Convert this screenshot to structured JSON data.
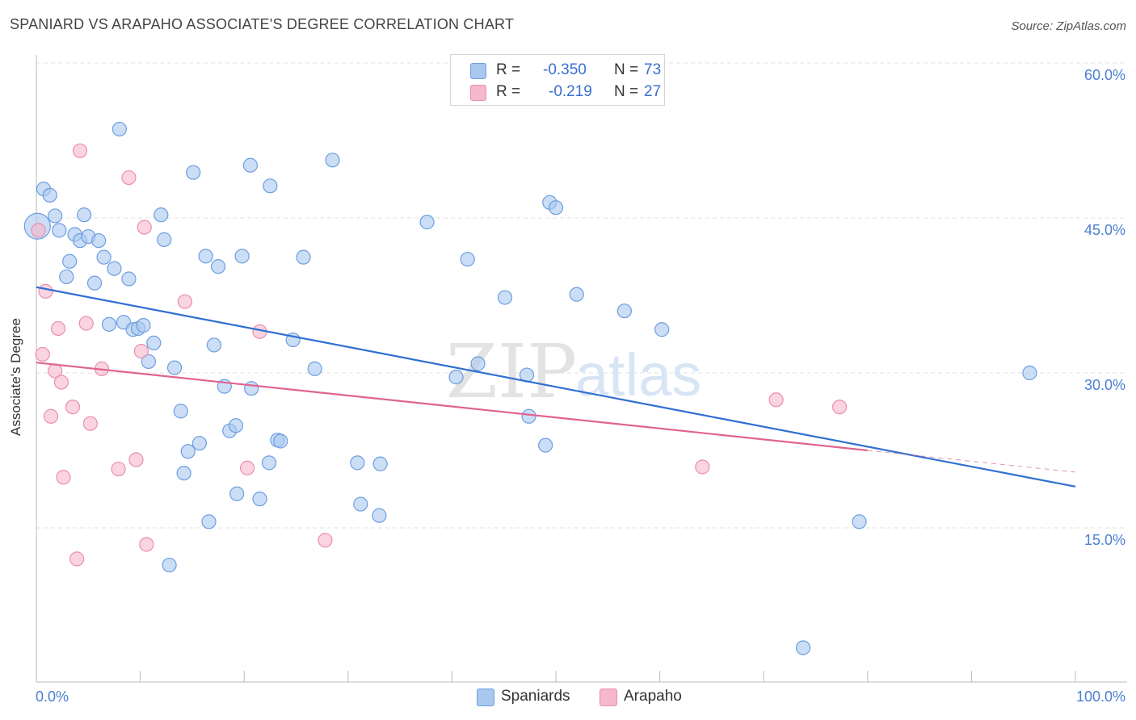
{
  "title": "SPANIARD VS ARAPAHO ASSOCIATE'S DEGREE CORRELATION CHART",
  "source": "Source: ZipAtlas.com",
  "watermark": {
    "zip": "ZIP",
    "atlas": "atlas"
  },
  "legend": {
    "rows": [
      {
        "r_label": "R =",
        "r_value": "-0.350",
        "n_label": "N =",
        "n_value": "73",
        "color": "#a9c8f0"
      },
      {
        "r_label": "R =",
        "r_value": "-0.219",
        "n_label": "N =",
        "n_value": "27",
        "color": "#f6b8cb"
      }
    ]
  },
  "bottom_legend": [
    {
      "label": "Spaniards",
      "color": "#a9c8f0"
    },
    {
      "label": "Arapaho",
      "color": "#f6b8cb"
    }
  ],
  "chart_data": {
    "type": "scatter",
    "title": "SPANIARD VS ARAPAHO ASSOCIATE'S DEGREE CORRELATION CHART",
    "xlabel": "",
    "ylabel": "Associate's Degree",
    "xlim": [
      0,
      100
    ],
    "ylim": [
      0,
      63
    ],
    "x_tick_labels": [
      "0.0%",
      "100.0%"
    ],
    "y_ticks": [
      15,
      30,
      45,
      60
    ],
    "y_tick_labels": [
      "15.0%",
      "30.0%",
      "45.0%",
      "60.0%"
    ],
    "grid": true,
    "series": [
      {
        "name": "Spaniards",
        "color": "#a9c8f0",
        "stroke": "#6d9ee0",
        "line_color": "#2f6fd0",
        "trend": {
          "x0": 0,
          "y0": 38.3,
          "x1": 100,
          "y1": 19.0
        },
        "points": [
          {
            "x": 0.1,
            "y": 44.2,
            "big": true
          },
          {
            "x": 0.7,
            "y": 47.8
          },
          {
            "x": 1.3,
            "y": 47.2
          },
          {
            "x": 1.8,
            "y": 45.2
          },
          {
            "x": 2.2,
            "y": 43.8
          },
          {
            "x": 2.9,
            "y": 39.3
          },
          {
            "x": 3.2,
            "y": 40.8
          },
          {
            "x": 3.7,
            "y": 43.4
          },
          {
            "x": 4.2,
            "y": 42.8
          },
          {
            "x": 4.6,
            "y": 45.3
          },
          {
            "x": 5.0,
            "y": 43.2
          },
          {
            "x": 5.6,
            "y": 38.7
          },
          {
            "x": 6.0,
            "y": 42.8
          },
          {
            "x": 6.5,
            "y": 41.2
          },
          {
            "x": 7.0,
            "y": 34.7
          },
          {
            "x": 7.5,
            "y": 40.1
          },
          {
            "x": 8.0,
            "y": 53.6
          },
          {
            "x": 8.4,
            "y": 34.9
          },
          {
            "x": 8.9,
            "y": 39.1
          },
          {
            "x": 9.3,
            "y": 34.2
          },
          {
            "x": 9.8,
            "y": 34.3
          },
          {
            "x": 10.3,
            "y": 34.6
          },
          {
            "x": 10.8,
            "y": 31.1
          },
          {
            "x": 11.3,
            "y": 32.9
          },
          {
            "x": 12.0,
            "y": 45.3
          },
          {
            "x": 12.3,
            "y": 42.9
          },
          {
            "x": 12.8,
            "y": 11.4
          },
          {
            "x": 13.3,
            "y": 30.5
          },
          {
            "x": 13.9,
            "y": 26.3
          },
          {
            "x": 14.2,
            "y": 20.3
          },
          {
            "x": 14.6,
            "y": 22.4
          },
          {
            "x": 15.1,
            "y": 49.4
          },
          {
            "x": 15.7,
            "y": 23.2
          },
          {
            "x": 16.3,
            "y": 41.3
          },
          {
            "x": 16.6,
            "y": 15.6
          },
          {
            "x": 17.1,
            "y": 32.7
          },
          {
            "x": 17.5,
            "y": 40.3
          },
          {
            "x": 18.1,
            "y": 28.7
          },
          {
            "x": 18.6,
            "y": 24.4
          },
          {
            "x": 19.2,
            "y": 24.9
          },
          {
            "x": 19.3,
            "y": 18.3
          },
          {
            "x": 19.8,
            "y": 41.3
          },
          {
            "x": 20.6,
            "y": 50.1
          },
          {
            "x": 20.7,
            "y": 28.5
          },
          {
            "x": 21.5,
            "y": 17.8
          },
          {
            "x": 22.4,
            "y": 21.3
          },
          {
            "x": 22.5,
            "y": 48.1
          },
          {
            "x": 23.2,
            "y": 23.5
          },
          {
            "x": 23.5,
            "y": 23.4
          },
          {
            "x": 24.7,
            "y": 33.2
          },
          {
            "x": 25.7,
            "y": 41.2
          },
          {
            "x": 26.8,
            "y": 30.4
          },
          {
            "x": 28.5,
            "y": 50.6
          },
          {
            "x": 30.9,
            "y": 21.3
          },
          {
            "x": 31.2,
            "y": 17.3
          },
          {
            "x": 33.0,
            "y": 16.2
          },
          {
            "x": 33.1,
            "y": 21.2
          },
          {
            "x": 37.6,
            "y": 44.6
          },
          {
            "x": 40.4,
            "y": 29.6
          },
          {
            "x": 41.5,
            "y": 41.0
          },
          {
            "x": 42.5,
            "y": 30.9
          },
          {
            "x": 45.1,
            "y": 37.3
          },
          {
            "x": 47.2,
            "y": 29.8
          },
          {
            "x": 47.4,
            "y": 25.8
          },
          {
            "x": 49.0,
            "y": 23.0
          },
          {
            "x": 49.4,
            "y": 46.5
          },
          {
            "x": 50.0,
            "y": 46.0
          },
          {
            "x": 52.0,
            "y": 37.6
          },
          {
            "x": 56.6,
            "y": 36.0
          },
          {
            "x": 60.2,
            "y": 34.2
          },
          {
            "x": 73.8,
            "y": 3.4
          },
          {
            "x": 79.2,
            "y": 15.6
          },
          {
            "x": 95.6,
            "y": 30.0
          }
        ]
      },
      {
        "name": "Arapaho",
        "color": "#f6b8cb",
        "stroke": "#ea8fab",
        "line_color": "#e0648f",
        "trend": {
          "x0": 0,
          "y0": 31.0,
          "x1": 80,
          "y1": 22.5
        },
        "trend_dashed": {
          "x0": 80,
          "y0": 22.5,
          "x1": 100,
          "y1": 20.4
        },
        "points": [
          {
            "x": 0.2,
            "y": 43.8
          },
          {
            "x": 0.6,
            "y": 31.8
          },
          {
            "x": 0.9,
            "y": 37.9
          },
          {
            "x": 1.4,
            "y": 25.8
          },
          {
            "x": 1.8,
            "y": 30.2
          },
          {
            "x": 2.1,
            "y": 34.3
          },
          {
            "x": 2.4,
            "y": 29.1
          },
          {
            "x": 2.6,
            "y": 19.9
          },
          {
            "x": 3.5,
            "y": 26.7
          },
          {
            "x": 3.9,
            "y": 12.0
          },
          {
            "x": 4.2,
            "y": 51.5
          },
          {
            "x": 4.8,
            "y": 34.8
          },
          {
            "x": 5.2,
            "y": 25.1
          },
          {
            "x": 6.3,
            "y": 30.4
          },
          {
            "x": 7.9,
            "y": 20.7
          },
          {
            "x": 8.9,
            "y": 48.9
          },
          {
            "x": 9.6,
            "y": 21.6
          },
          {
            "x": 10.1,
            "y": 32.1
          },
          {
            "x": 10.4,
            "y": 44.1
          },
          {
            "x": 10.6,
            "y": 13.4
          },
          {
            "x": 14.3,
            "y": 36.9
          },
          {
            "x": 20.3,
            "y": 20.8
          },
          {
            "x": 21.5,
            "y": 34.0
          },
          {
            "x": 27.8,
            "y": 13.8
          },
          {
            "x": 64.1,
            "y": 20.9
          },
          {
            "x": 71.2,
            "y": 27.4
          },
          {
            "x": 77.3,
            "y": 26.7
          }
        ]
      }
    ]
  }
}
